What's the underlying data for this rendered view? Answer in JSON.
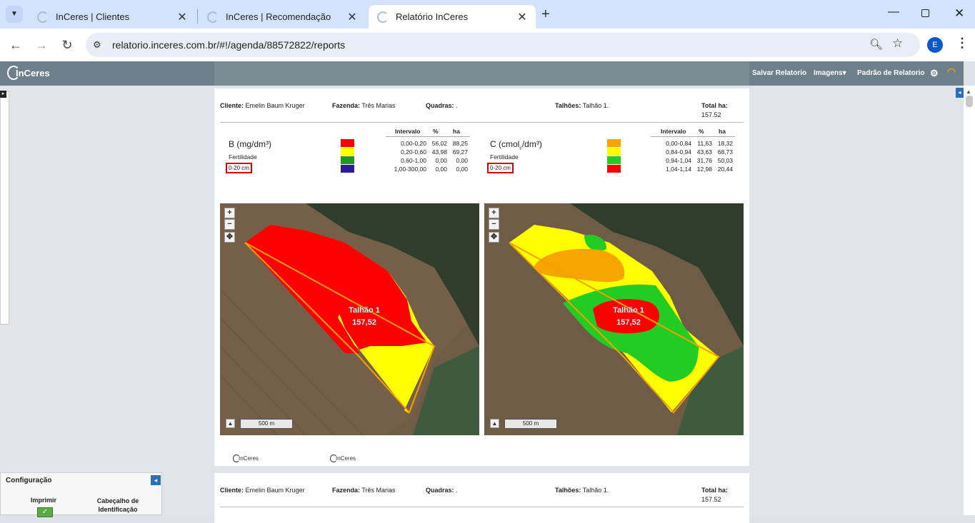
{
  "browser": {
    "tabs": [
      {
        "title": "InCeres | Clientes"
      },
      {
        "title": "InCeres | Recomendação"
      },
      {
        "title": "Relatório InCeres"
      }
    ],
    "url": "relatorio.inceres.com.br/#!/agenda/88572822/reports",
    "profile_initial": "E"
  },
  "app": {
    "logo": "InCeres",
    "menu": {
      "save": "Salvar Relatorio",
      "images": "Imagens",
      "pattern": "Padrão de Relatorio"
    }
  },
  "report": {
    "client_label": "Cliente:",
    "client": "Emelin Baum Kruger",
    "farm_label": "Fazenda:",
    "farm": "Três Marias",
    "blocks_label": "Quadras:",
    "blocks": ".",
    "plots_label": "Talhões:",
    "plots": "Talhão 1.",
    "total_label": "Total ha:",
    "total": "157.52",
    "col_interval": "Intervalo",
    "col_pct": "%",
    "col_ha": "ha",
    "left": {
      "title": "B (mg/dm³)",
      "subtitle": "Fertilidade",
      "depth": "0-20 cm",
      "rows": [
        {
          "color": "#ff0000",
          "interval": "0,00-0,20",
          "pct": "56,02",
          "ha": "88,25"
        },
        {
          "color": "#ffff00",
          "interval": "0,20-0,60",
          "pct": "43,98",
          "ha": "69,27"
        },
        {
          "color": "#1c9a1c",
          "interval": "0,60-1,00",
          "pct": "0,00",
          "ha": "0,00"
        },
        {
          "color": "#2a1a9a",
          "interval": "1,00-300,00",
          "pct": "0,00",
          "ha": "0,00"
        }
      ]
    },
    "right": {
      "title": "C (cmolc/dm³)",
      "subtitle": "Fertilidade",
      "depth": "0-20 cm",
      "rows": [
        {
          "color": "#f5a400",
          "interval": "0,00-0,84",
          "pct": "11,63",
          "ha": "18,32"
        },
        {
          "color": "#ffff00",
          "interval": "0,84-0,94",
          "pct": "43,63",
          "ha": "68,73"
        },
        {
          "color": "#22cc22",
          "interval": "0,94-1,04",
          "pct": "31,76",
          "ha": "50,03"
        },
        {
          "color": "#ff0000",
          "interval": "1,04-1,14",
          "pct": "12,98",
          "ha": "20,44"
        }
      ]
    },
    "map_label": "Talhão 1",
    "map_area": "157,52",
    "scale": "500 m",
    "footer_logo": "InCeres"
  },
  "config": {
    "title": "Configuração",
    "print": "Imprimir",
    "header": "Cabeçalho de Identificação"
  }
}
